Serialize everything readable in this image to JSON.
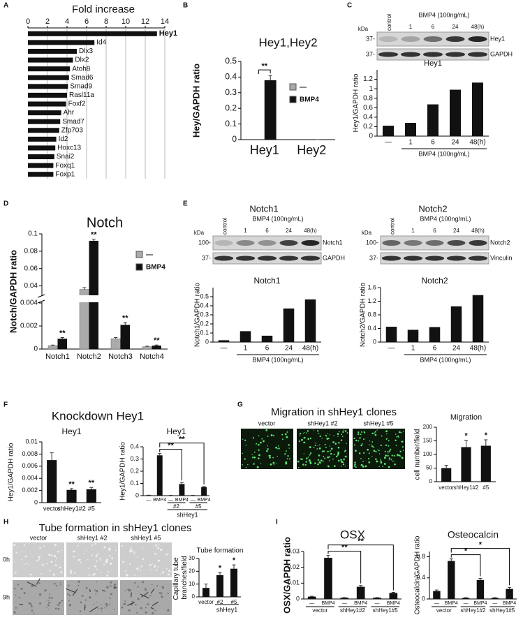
{
  "panels": [
    "A",
    "B",
    "C",
    "D",
    "E",
    "F",
    "G",
    "H",
    "I"
  ],
  "sections": {
    "knockdown": "Knockdown Hey1",
    "migration": "Migration in shHey1 clones",
    "tube": "Tube formation in shHey1 clones"
  },
  "micrographs": {
    "migration": [
      "vector",
      "shHey1 #2",
      "shHey1 #5"
    ],
    "tube_columns": [
      "vector",
      "shHey1 #2",
      "shHey1 #5"
    ],
    "tube_rows": [
      "0h",
      "9h"
    ]
  },
  "blots": [
    {
      "kda": "kDa",
      "control": "control",
      "treatment": "BMP4 (100ng/mL)",
      "lanes": [
        "1",
        "6",
        "24",
        "48(h)"
      ],
      "markers": [
        "37-",
        "37-"
      ],
      "bands": [
        "Hey1",
        "GAPDH"
      ]
    },
    {
      "title": "Notch1",
      "kda": "kDa",
      "control": "control",
      "treatment": "BMP4 (100ng/mL)",
      "lanes": [
        "1",
        "6",
        "24",
        "48(h)"
      ],
      "markers": [
        "100-",
        "37-"
      ],
      "bands": [
        "Notch1",
        "GAPDH"
      ]
    },
    {
      "title": "Notch2",
      "kda": "kDa",
      "control": "control",
      "treatment": "BMP4 (100ng/mL)",
      "lanes": [
        "1",
        "6",
        "24",
        "48(h)"
      ],
      "markers": [
        "100-",
        "37-"
      ],
      "bands": [
        "Notch2",
        "Vinculin"
      ]
    }
  ],
  "chart_data": [
    {
      "type": "barh",
      "title": "Fold increase",
      "categories": [
        "Hey1",
        "Id4",
        "Dlx3",
        "Dlx2",
        "Atoh8",
        "Smad6",
        "Smad9",
        "Rasl11a",
        "Foxf2",
        "Ahr",
        "Smad7",
        "Zfp703",
        "Id2",
        "Hoxc13",
        "Snai2",
        "Foxq1",
        "Foxp1"
      ],
      "values": [
        13.2,
        6.8,
        5.0,
        4.6,
        4.3,
        4.2,
        4.1,
        4.0,
        3.9,
        3.4,
        3.3,
        3.2,
        2.9,
        2.8,
        2.7,
        2.6,
        2.6
      ],
      "color": "#111111",
      "xlim": [
        0,
        14
      ],
      "xticks": [
        0,
        2,
        4,
        6,
        8,
        10,
        12,
        14
      ],
      "grid": true
    },
    {
      "type": "bar",
      "title": "Hey1,Hey2",
      "ylabel": "Hey/GAPDH ratio",
      "categories": [
        "Hey1",
        "Hey2"
      ],
      "series": [
        {
          "name": "—",
          "color": "#aaaaaa",
          "values": [
            0,
            0
          ]
        },
        {
          "name": "BMP4",
          "color": "#111111",
          "values": [
            0.38,
            0
          ],
          "errors": [
            0.03,
            0
          ]
        }
      ],
      "ylim": [
        0,
        0.5
      ],
      "yticks": [
        0,
        0.1,
        0.2,
        0.3,
        0.4,
        0.5
      ],
      "legend": "right",
      "brackets": [
        "**"
      ]
    },
    {
      "type": "bar",
      "title": "Hey1",
      "ylabel": "Hey1/GAPDH ratio",
      "categories": [
        "—",
        "1",
        "6",
        "24",
        "48(h)"
      ],
      "group_caption": "BMP4 (100ng/mL)",
      "values": [
        0.22,
        0.28,
        0.67,
        0.98,
        1.13
      ],
      "color": "#111111",
      "ylim": [
        0,
        1.4
      ],
      "yticks": [
        0,
        0.2,
        0.4,
        0.6,
        0.8,
        1,
        1.2
      ]
    },
    {
      "type": "bar",
      "title": "Notch",
      "ylabel": "Notch/GAPDH ratio",
      "categories": [
        "Notch1",
        "Notch2",
        "Notch3",
        "Notch4"
      ],
      "series": [
        {
          "name": "—",
          "color": "#aaaaaa",
          "values": [
            0.0003,
            0.036,
            0.0009,
            0.0002
          ],
          "errors": [
            5e-05,
            0.002,
            0.0001,
            5e-05
          ]
        },
        {
          "name": "BMP4",
          "color": "#111111",
          "values": [
            0.0009,
            0.092,
            0.0021,
            0.0003
          ],
          "errors": [
            0.0001,
            0.002,
            0.0002,
            5e-05
          ],
          "value_annotations": [
            "**",
            "**",
            "**",
            "**"
          ]
        }
      ],
      "ylim": [
        0,
        0.1
      ],
      "ybreak": [
        0.004,
        0.03
      ],
      "yticks": [
        0,
        0.002,
        0.004,
        0.04,
        0.06,
        0.08,
        0.1
      ],
      "legend": "right"
    },
    {
      "type": "bar",
      "title": "Notch1",
      "ylabel": "Notch1/GAPDH ratio",
      "categories": [
        "—",
        "1",
        "6",
        "24",
        "48(h)"
      ],
      "group_caption": "BMP4 (100ng/mL)",
      "values": [
        0.02,
        0.12,
        0.07,
        0.37,
        0.47
      ],
      "color": "#111111",
      "ylim": [
        0,
        0.6
      ],
      "yticks": [
        0,
        0.1,
        0.2,
        0.3,
        0.4,
        0.5
      ]
    },
    {
      "type": "bar",
      "title": "Notch2",
      "ylabel": "Notch2/GAPDH ratio",
      "categories": [
        "—",
        "1",
        "6",
        "24",
        "48(h)"
      ],
      "group_caption": "BMP4 (100ng/mL)",
      "values": [
        0.45,
        0.36,
        0.44,
        1.05,
        1.38
      ],
      "color": "#111111",
      "ylim": [
        0,
        1.6
      ],
      "yticks": [
        0,
        0.4,
        0.8,
        1.2,
        1.6
      ]
    },
    {
      "type": "bar",
      "title": "Hey1",
      "ylabel": "Hey1/GAPDH ratio",
      "categories": [
        "vector",
        "shHey1#2",
        "#5"
      ],
      "values": [
        0.007,
        0.0021,
        0.0022
      ],
      "errors": [
        0.0012,
        0.0002,
        0.0003
      ],
      "value_annotations": [
        null,
        "**",
        "**"
      ],
      "color": "#111111",
      "ylim": [
        0,
        0.01
      ],
      "yticks": [
        0,
        0.002,
        0.004,
        0.006,
        0.008,
        0.01
      ]
    },
    {
      "type": "bar",
      "title": "Hey1",
      "ylabel": "Hey1/GAPDH ratio",
      "categories": [
        "—",
        "BMP4",
        "—",
        "BMP4",
        "—",
        "BMP4"
      ],
      "groups": [
        null,
        "#2",
        "#5"
      ],
      "group_caption": "shHey1",
      "values": [
        0.004,
        0.33,
        0.003,
        0.095,
        0.003,
        0.07
      ],
      "errors": [
        0,
        0.015,
        0,
        0.012,
        0,
        0.005
      ],
      "brackets": [
        "**",
        "**"
      ],
      "color": "#111111",
      "ylim": [
        0,
        0.4
      ],
      "yticks": [
        0,
        0.1,
        0.2,
        0.3,
        0.4
      ]
    },
    {
      "type": "bar",
      "title": "Migration",
      "ylabel": "cell number/field",
      "categories": [
        "vector",
        "shHey1#2",
        "#5"
      ],
      "values": [
        50,
        127,
        132
      ],
      "errors": [
        10,
        25,
        22
      ],
      "value_annotations": [
        null,
        "*",
        "*"
      ],
      "color": "#111111",
      "ylim": [
        0,
        200
      ],
      "yticks": [
        0,
        50,
        100,
        150,
        200
      ]
    },
    {
      "type": "bar",
      "title": "Tube formation",
      "ylabel": "Capillary tube branches/field",
      "categories": [
        "vector",
        "#2",
        "#5"
      ],
      "group_caption": "shHey1",
      "values": [
        7,
        17,
        22
      ],
      "errors": [
        3,
        2,
        3
      ],
      "value_annotations": [
        null,
        "*",
        "*"
      ],
      "color": "#111111",
      "ylim": [
        0,
        30
      ],
      "yticks": [
        0,
        10,
        20,
        30
      ]
    },
    {
      "type": "bar",
      "title": "OSX",
      "ylabel": "OSX/GAPDH ratio",
      "categories": [
        "—",
        "BMP4",
        "—",
        "BMP4",
        "—",
        "BMP4"
      ],
      "groups": [
        "vector",
        "shHey1#2",
        "shHey1#5"
      ],
      "values": [
        0.0015,
        0.026,
        0.0008,
        0.0077,
        0.0008,
        0.0038
      ],
      "errors": [
        0.0002,
        0.0015,
        0.0001,
        0.0008,
        0.0001,
        0.0004
      ],
      "brackets": [
        "**",
        "**"
      ],
      "color": "#111111",
      "ylim": [
        0,
        0.03
      ],
      "yticks": [
        0,
        0.01,
        0.02,
        0.03
      ]
    },
    {
      "type": "bar",
      "title": "Osteocalcin",
      "ylabel": "Osteocalcin/GAPDH ratio",
      "categories": [
        "—",
        "BMP4",
        "—",
        "BMP4",
        "—",
        "BMP4"
      ],
      "groups": [
        "vector",
        "shHey1#2",
        "shHey1#5"
      ],
      "values": [
        0.15,
        0.72,
        0.02,
        0.36,
        0.02,
        0.19
      ],
      "errors": [
        0.02,
        0.04,
        0.005,
        0.03,
        0.005,
        0.03
      ],
      "brackets": [
        "*",
        "*"
      ],
      "color": "#111111",
      "ylim": [
        0,
        0.9
      ],
      "yticks": [
        0,
        0.4,
        0.8
      ]
    }
  ]
}
